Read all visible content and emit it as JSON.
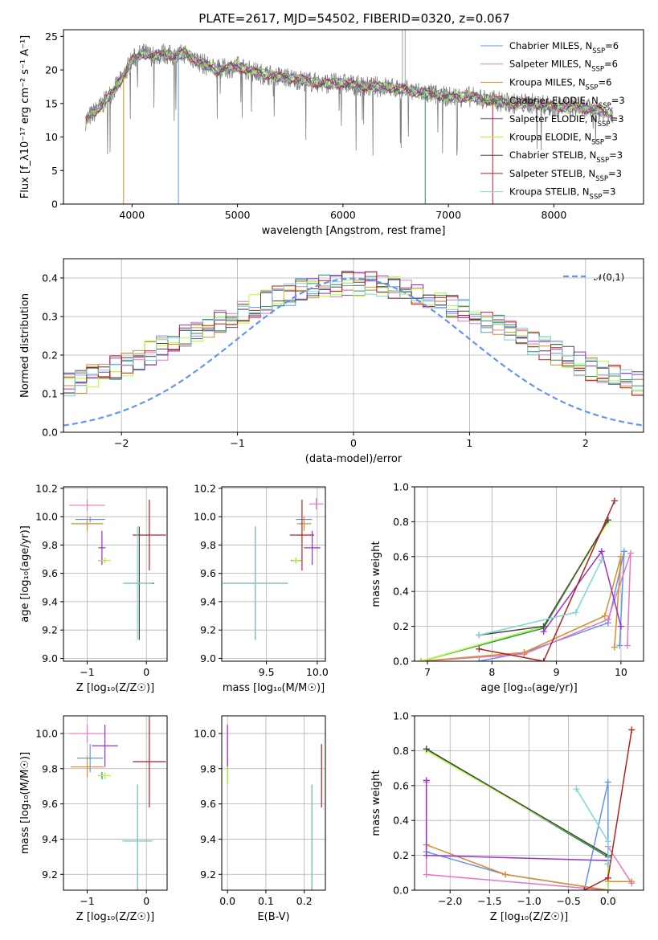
{
  "figure": {
    "title": "PLATE=2617, MJD=54502, FIBERID=0320, z=0.067"
  },
  "series_styles": [
    {
      "name": "Chabrier MILES",
      "nssp": "6",
      "color": "#6495ED"
    },
    {
      "name": "Salpeter MILES",
      "nssp": "6",
      "color": "#E377C2"
    },
    {
      "name": "Kroupa MILES",
      "nssp": "6",
      "color": "#D98C2B"
    },
    {
      "name": "Chabrier ELODIE",
      "nssp": "3",
      "color": "#2E8B57"
    },
    {
      "name": "Salpeter ELODIE",
      "nssp": "3",
      "color": "#9932CC"
    },
    {
      "name": "Kroupa ELODIE",
      "nssp": "3",
      "color": "#ADFF2F"
    },
    {
      "name": "Chabrier STELIB",
      "nssp": "3",
      "color": "#444444"
    },
    {
      "name": "Salpeter STELIB",
      "nssp": "3",
      "color": "#B22222"
    },
    {
      "name": "Kroupa STELIB",
      "nssp": "3",
      "color": "#7FD4D4"
    }
  ],
  "chart_data": [
    {
      "id": "spectrum",
      "type": "line",
      "title": "PLATE=2617, MJD=54502, FIBERID=0320, z=0.067",
      "xlabel": "wavelength [Angstrom, rest frame]",
      "ylabel": "Flux [f_λ10⁻¹⁷ erg cm⁻² s⁻¹ A⁻¹]",
      "xlim": [
        3350,
        8850
      ],
      "ylim": [
        0,
        26
      ],
      "xticks": [
        4000,
        5000,
        6000,
        7000,
        8000
      ],
      "yticks": [
        0,
        5,
        10,
        15,
        20,
        25
      ],
      "grid": false,
      "legend": "top-right",
      "data_envelope": {
        "x": [
          3560,
          3700,
          3800,
          3900,
          4000,
          4100,
          4200,
          4300,
          4400,
          4500,
          4600,
          4800,
          5000,
          5200,
          5400,
          5600,
          5800,
          6000,
          6200,
          6400,
          6600,
          6800,
          7000,
          7200,
          7400,
          7600,
          7800,
          8000,
          8200,
          8400,
          8560
        ],
        "y": [
          12.5,
          14.5,
          16.5,
          18.5,
          21.5,
          22.5,
          22.0,
          22.5,
          22.0,
          22.5,
          21.5,
          20.0,
          20.5,
          19.5,
          19.0,
          18.5,
          18.0,
          18.0,
          17.5,
          17.5,
          17.0,
          16.5,
          16.0,
          16.0,
          15.5,
          15.0,
          15.0,
          14.5,
          14.5,
          14.0,
          13.5
        ]
      }
    },
    {
      "id": "residual-distribution",
      "type": "line",
      "xlabel": "(data-model)/error",
      "ylabel": "Normed distribution",
      "xlim": [
        -2.5,
        2.5
      ],
      "ylim": [
        0,
        0.45
      ],
      "xticks": [
        -2,
        -1,
        0,
        1,
        2
      ],
      "yticks": [
        0.0,
        0.1,
        0.2,
        0.3,
        0.4
      ],
      "grid": true,
      "legend": "top-right",
      "reference_curve": {
        "name": "𝒩(0,1)",
        "style": "dashed",
        "color": "#6495ED"
      },
      "histogram_bin_width": 0.1
    },
    {
      "id": "z-vs-age",
      "type": "scatter",
      "xlabel": "Z [log₁₀(Z/Z☉)]",
      "ylabel": "age  [log₁₀(age/yr)]",
      "xlim": [
        -1.4,
        0.35
      ],
      "ylim": [
        8.98,
        10.21
      ],
      "xticks": [
        -1,
        0
      ],
      "yticks": [
        9.0,
        9.2,
        9.4,
        9.6,
        9.8,
        10.0,
        10.2
      ],
      "grid": true,
      "points": [
        {
          "s": 0,
          "x": -0.95,
          "y": 9.98,
          "xerr": 0.25,
          "yerr": 0.02
        },
        {
          "s": 1,
          "x": -1.0,
          "y": 10.08,
          "xerr": 0.3,
          "yerr": 0.04
        },
        {
          "s": 2,
          "x": -1.0,
          "y": 9.95,
          "xerr": 0.27,
          "yerr": 0.05
        },
        {
          "s": 3,
          "x": -0.75,
          "y": 9.69,
          "xerr": 0.06,
          "yerr": 0.02
        },
        {
          "s": 4,
          "x": -0.75,
          "y": 9.78,
          "xerr": 0.06,
          "yerr": 0.12
        },
        {
          "s": 5,
          "x": -0.7,
          "y": 9.69,
          "xerr": 0.1,
          "yerr": 0.02
        },
        {
          "s": 6,
          "x": -0.12,
          "y": 9.53,
          "xerr": 0.25,
          "yerr": 0.4
        },
        {
          "s": 7,
          "x": 0.05,
          "y": 9.87,
          "xerr": 0.28,
          "yerr": 0.25
        },
        {
          "s": 8,
          "x": -0.15,
          "y": 9.53,
          "xerr": 0.25,
          "yerr": 0.4
        }
      ]
    },
    {
      "id": "mass-vs-age",
      "type": "scatter",
      "xlabel": "mass [log₁₀(M/M☉)]",
      "xlim": [
        9.06,
        10.08
      ],
      "ylim": [
        8.98,
        10.21
      ],
      "xticks": [
        9.5,
        10.0
      ],
      "yticks": [
        9.0,
        9.2,
        9.4,
        9.6,
        9.8,
        10.0,
        10.2
      ],
      "grid": true,
      "points": [
        {
          "s": 0,
          "x": 9.87,
          "y": 9.98,
          "xerr": 0.08,
          "yerr": 0.02
        },
        {
          "s": 1,
          "x": 9.99,
          "y": 10.09,
          "xerr": 0.07,
          "yerr": 0.04
        },
        {
          "s": 2,
          "x": 9.87,
          "y": 9.95,
          "xerr": 0.07,
          "yerr": 0.05
        },
        {
          "s": 3,
          "x": 9.79,
          "y": 9.69,
          "xerr": 0.05,
          "yerr": 0.02
        },
        {
          "s": 4,
          "x": 9.95,
          "y": 9.78,
          "xerr": 0.08,
          "yerr": 0.12
        },
        {
          "s": 5,
          "x": 9.79,
          "y": 9.69,
          "xerr": 0.04,
          "yerr": 0.02
        },
        {
          "s": 6,
          "x": 9.39,
          "y": 9.53,
          "xerr": 0.32,
          "yerr": 0.4
        },
        {
          "s": 7,
          "x": 9.85,
          "y": 9.87,
          "xerr": 0.12,
          "yerr": 0.25
        },
        {
          "s": 8,
          "x": 9.39,
          "y": 9.53,
          "xerr": 0.32,
          "yerr": 0.4
        }
      ]
    },
    {
      "id": "age-vs-weight",
      "type": "line",
      "xlabel": "age  [log₁₀(age/yr)]",
      "ylabel": "mass weight",
      "xlim": [
        6.8,
        10.35
      ],
      "ylim": [
        0,
        1.0
      ],
      "xticks": [
        7,
        8,
        9,
        10
      ],
      "yticks": [
        0.0,
        0.2,
        0.4,
        0.6,
        0.8,
        1.0
      ],
      "grid": true,
      "series": [
        {
          "s": 0,
          "x": [
            7.8,
            8.5,
            9.8,
            10.05,
            9.98
          ],
          "y": [
            0.0,
            0.05,
            0.22,
            0.63,
            0.09
          ]
        },
        {
          "s": 1,
          "x": [
            6.9,
            8.5,
            9.8,
            10.15,
            10.1
          ],
          "y": [
            0.0,
            0.04,
            0.24,
            0.62,
            0.09
          ]
        },
        {
          "s": 2,
          "x": [
            6.9,
            8.5,
            9.75,
            10.0,
            9.9
          ],
          "y": [
            0.0,
            0.05,
            0.26,
            0.6,
            0.08
          ]
        },
        {
          "s": 3,
          "x": [
            6.9,
            8.8,
            9.8
          ],
          "y": [
            0.0,
            0.19,
            0.81
          ]
        },
        {
          "s": 4,
          "x": [
            8.8,
            9.7,
            10.0
          ],
          "y": [
            0.17,
            0.63,
            0.2
          ]
        },
        {
          "s": 5,
          "x": [
            6.9,
            8.8,
            9.8
          ],
          "y": [
            0.0,
            0.2,
            0.8
          ]
        },
        {
          "s": 6,
          "x": [
            7.8,
            8.8,
            9.8
          ],
          "y": [
            0.15,
            0.2,
            0.81
          ]
        },
        {
          "s": 7,
          "x": [
            7.8,
            8.8,
            9.9
          ],
          "y": [
            0.07,
            0.0,
            0.92
          ]
        },
        {
          "s": 8,
          "x": [
            7.8,
            9.3,
            9.7
          ],
          "y": [
            0.15,
            0.28,
            0.58
          ]
        }
      ]
    },
    {
      "id": "z-vs-mass",
      "type": "scatter",
      "xlabel": "Z [log₁₀(Z/Z☉)]",
      "ylabel": "mass [log₁₀(M/M☉)]",
      "xlim": [
        -1.4,
        0.35
      ],
      "ylim": [
        9.11,
        10.1
      ],
      "xticks": [
        -1,
        0
      ],
      "yticks": [
        9.2,
        9.4,
        9.6,
        9.8,
        10.0
      ],
      "grid": true,
      "points": [
        {
          "s": 0,
          "x": -0.95,
          "y": 9.86,
          "xerr": 0.22,
          "yerr": 0.08
        },
        {
          "s": 1,
          "x": -1.0,
          "y": 10.0,
          "xerr": 0.3,
          "yerr": 0.05
        },
        {
          "s": 2,
          "x": -1.0,
          "y": 9.81,
          "xerr": 0.28,
          "yerr": 0.06
        },
        {
          "s": 3,
          "x": -0.75,
          "y": 9.76,
          "xerr": 0.06,
          "yerr": 0.02
        },
        {
          "s": 4,
          "x": -0.7,
          "y": 9.93,
          "xerr": 0.22,
          "yerr": 0.12
        },
        {
          "s": 5,
          "x": -0.7,
          "y": 9.76,
          "xerr": 0.1,
          "yerr": 0.02
        },
        {
          "s": 6,
          "x": -0.15,
          "y": 9.39,
          "xerr": 0.25,
          "yerr": 0.32
        },
        {
          "s": 7,
          "x": 0.05,
          "y": 9.84,
          "xerr": 0.28,
          "yerr": 0.26
        },
        {
          "s": 8,
          "x": -0.15,
          "y": 9.39,
          "xerr": 0.25,
          "yerr": 0.32
        }
      ]
    },
    {
      "id": "ebv-vs-mass",
      "type": "scatter",
      "xlabel": "E(B-V)",
      "xlim": [
        -0.015,
        0.255
      ],
      "ylim": [
        9.11,
        10.1
      ],
      "xticks": [
        0.0,
        0.1,
        0.2
      ],
      "yticks": [
        9.2,
        9.4,
        9.6,
        9.8,
        10.0
      ],
      "grid": true,
      "points": [
        {
          "s": 0,
          "x": 0.0,
          "y": 9.86,
          "xerr": 0,
          "yerr": 0.08
        },
        {
          "s": 1,
          "x": 0.0,
          "y": 9.98,
          "xerr": 0,
          "yerr": 0.05
        },
        {
          "s": 2,
          "x": 0.0,
          "y": 9.81,
          "xerr": 0,
          "yerr": 0.06
        },
        {
          "s": 3,
          "x": 0.0,
          "y": 9.76,
          "xerr": 0,
          "yerr": 0.05
        },
        {
          "s": 4,
          "x": 0.0,
          "y": 9.93,
          "xerr": 0,
          "yerr": 0.12
        },
        {
          "s": 5,
          "x": 0.0,
          "y": 9.76,
          "xerr": 0,
          "yerr": 0.05
        },
        {
          "s": 6,
          "x": 0.22,
          "y": 9.39,
          "xerr": 0,
          "yerr": 0.32
        },
        {
          "s": 7,
          "x": 0.245,
          "y": 9.76,
          "xerr": 0,
          "yerr": 0.18
        },
        {
          "s": 8,
          "x": 0.22,
          "y": 9.39,
          "xerr": 0,
          "yerr": 0.32
        }
      ]
    },
    {
      "id": "z-vs-weight",
      "type": "line",
      "xlabel": "Z [log₁₀(Z/Z☉)]",
      "ylabel": "mass weight",
      "xlim": [
        -2.45,
        0.45
      ],
      "ylim": [
        0,
        1.0
      ],
      "xticks": [
        -2.0,
        -1.5,
        -1.0,
        -0.5,
        0.0
      ],
      "yticks": [
        0.0,
        0.2,
        0.4,
        0.6,
        0.8,
        1.0
      ],
      "grid": true,
      "series": [
        {
          "s": 0,
          "x": [
            -2.3,
            -1.3,
            0.0,
            0.0,
            -0.3
          ],
          "y": [
            0.22,
            0.09,
            0.0,
            0.62,
            0.0
          ]
        },
        {
          "s": 1,
          "x": [
            -2.3,
            -2.3,
            0.0,
            0.0,
            0.3
          ],
          "y": [
            0.62,
            0.09,
            0.0,
            0.25,
            0.04
          ]
        },
        {
          "s": 2,
          "x": [
            -2.3,
            -1.3,
            0.0,
            0.0,
            0.3
          ],
          "y": [
            0.26,
            0.09,
            0.0,
            0.05,
            0.05
          ]
        },
        {
          "s": 3,
          "x": [
            -2.3,
            0.0,
            0.0
          ],
          "y": [
            0.81,
            0.19,
            0.0
          ]
        },
        {
          "s": 4,
          "x": [
            -2.3,
            -2.3,
            0.0,
            0.0
          ],
          "y": [
            0.63,
            0.2,
            0.17,
            0.0
          ]
        },
        {
          "s": 5,
          "x": [
            -2.3,
            0.0,
            0.0
          ],
          "y": [
            0.8,
            0.2,
            0.0
          ]
        },
        {
          "s": 6,
          "x": [
            -2.3,
            0.0,
            0.0
          ],
          "y": [
            0.81,
            0.2,
            0.15
          ]
        },
        {
          "s": 7,
          "x": [
            -0.3,
            0.0,
            0.3
          ],
          "y": [
            0.0,
            0.07,
            0.92
          ]
        },
        {
          "s": 8,
          "x": [
            -0.4,
            0.0,
            0.0
          ],
          "y": [
            0.58,
            0.28,
            0.15
          ]
        }
      ]
    }
  ]
}
